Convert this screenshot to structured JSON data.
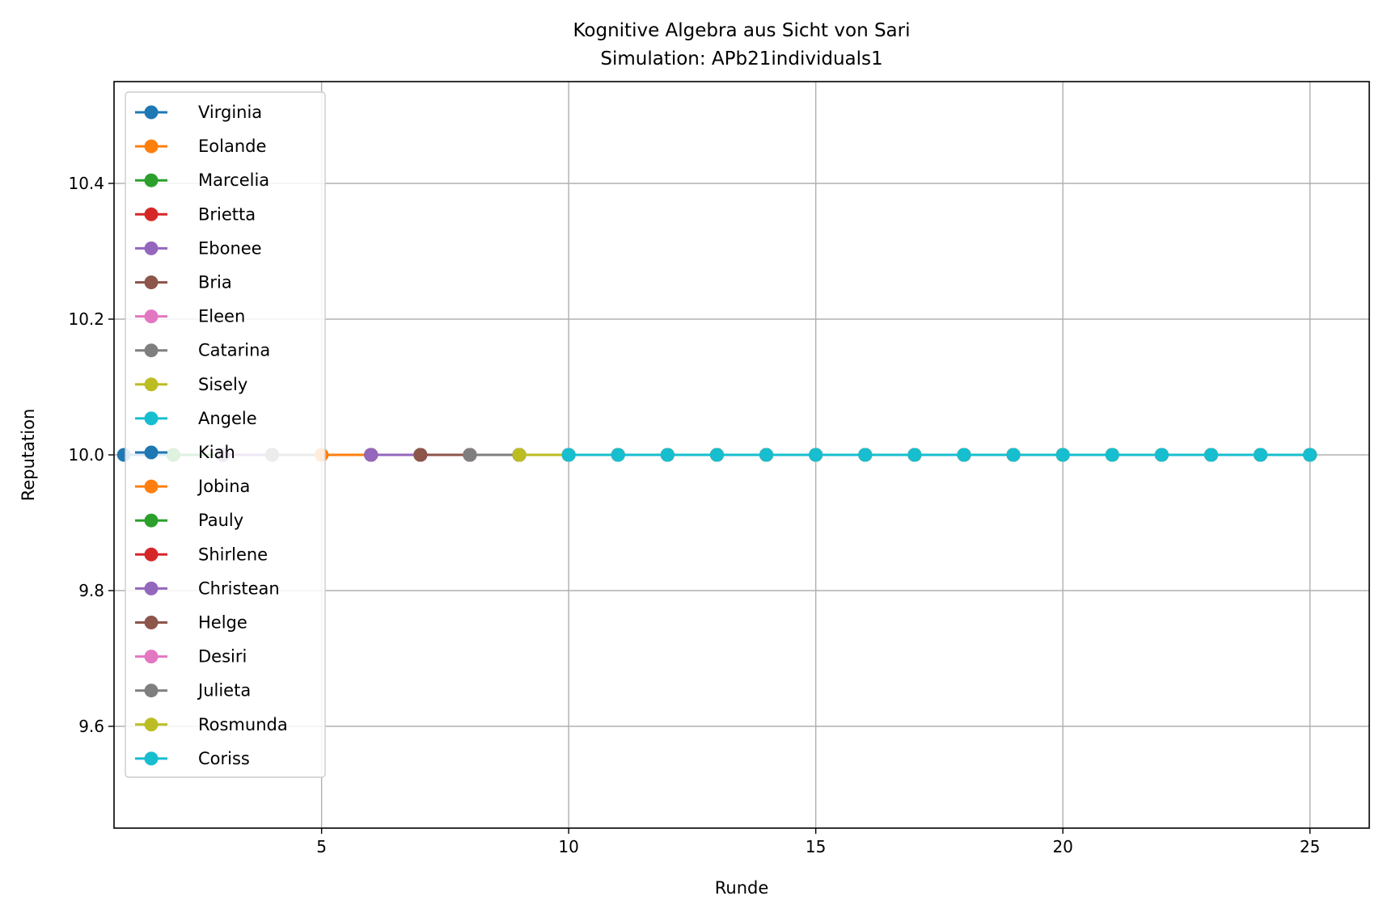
{
  "chart_data": {
    "type": "line",
    "title": "Kognitive Algebra aus Sicht von Sari",
    "subtitle": "Simulation: APb21individuals1",
    "xlabel": "Runde",
    "ylabel": "Reputation",
    "xlim": [
      0.8,
      26.2
    ],
    "ylim": [
      9.45,
      10.55
    ],
    "xticks": [
      5,
      10,
      15,
      20,
      25
    ],
    "xtick_labels": [
      "5",
      "10",
      "15",
      "20",
      "25"
    ],
    "yticks": [
      9.6,
      9.8,
      10.0,
      10.2,
      10.4
    ],
    "ytick_labels": [
      "9.6",
      "9.8",
      "10.0",
      "10.2",
      "10.4"
    ],
    "grid": true,
    "legend_position": "upper-left",
    "series": [
      {
        "name": "Virginia",
        "color": "#1f77b4",
        "x": [
          1,
          2,
          3,
          4,
          5,
          6,
          7,
          8,
          9,
          10,
          11,
          12,
          13,
          14,
          15,
          16,
          17,
          18,
          19,
          20,
          21,
          22,
          23,
          24,
          25
        ],
        "y": [
          10,
          10,
          10,
          10,
          10,
          10,
          10,
          10,
          10,
          10,
          10,
          10,
          10,
          10,
          10,
          10,
          10,
          10,
          10,
          10,
          10,
          10,
          10,
          10,
          10
        ]
      },
      {
        "name": "Eolande",
        "color": "#ff7f0e",
        "x": [
          2,
          3,
          4,
          5,
          6,
          7,
          8,
          9,
          10,
          11,
          12,
          13,
          14,
          15,
          16,
          17,
          18,
          19,
          20,
          21,
          22,
          23,
          24,
          25
        ],
        "y": [
          10,
          10,
          10,
          10,
          10,
          10,
          10,
          10,
          10,
          10,
          10,
          10,
          10,
          10,
          10,
          10,
          10,
          10,
          10,
          10,
          10,
          10,
          10,
          10
        ]
      },
      {
        "name": "Marcelia",
        "color": "#2ca02c",
        "x": [
          2,
          3,
          4,
          5,
          6,
          7,
          8,
          9,
          10,
          11,
          12,
          13,
          14,
          15,
          16,
          17,
          18,
          19,
          20,
          21,
          22,
          23,
          24,
          25
        ],
        "y": [
          10,
          10,
          10,
          10,
          10,
          10,
          10,
          10,
          10,
          10,
          10,
          10,
          10,
          10,
          10,
          10,
          10,
          10,
          10,
          10,
          10,
          10,
          10,
          10
        ]
      },
      {
        "name": "Brietta",
        "color": "#d62728",
        "x": [
          3,
          4,
          5,
          6,
          7,
          8,
          9,
          10,
          11,
          12,
          13,
          14,
          15,
          16,
          17,
          18,
          19,
          20,
          21,
          22,
          23,
          24,
          25
        ],
        "y": [
          10,
          10,
          10,
          10,
          10,
          10,
          10,
          10,
          10,
          10,
          10,
          10,
          10,
          10,
          10,
          10,
          10,
          10,
          10,
          10,
          10,
          10,
          10
        ]
      },
      {
        "name": "Ebonee",
        "color": "#9467bd",
        "x": [
          3,
          4,
          5,
          6,
          7,
          8,
          9,
          10,
          11,
          12,
          13,
          14,
          15,
          16,
          17,
          18,
          19,
          20,
          21,
          22,
          23,
          24,
          25
        ],
        "y": [
          10,
          10,
          10,
          10,
          10,
          10,
          10,
          10,
          10,
          10,
          10,
          10,
          10,
          10,
          10,
          10,
          10,
          10,
          10,
          10,
          10,
          10,
          10
        ]
      },
      {
        "name": "Bria",
        "color": "#8c564b",
        "x": [
          4,
          5,
          6,
          7,
          8,
          9,
          10,
          11,
          12,
          13,
          14,
          15,
          16,
          17,
          18,
          19,
          20,
          21,
          22,
          23,
          24,
          25
        ],
        "y": [
          10,
          10,
          10,
          10,
          10,
          10,
          10,
          10,
          10,
          10,
          10,
          10,
          10,
          10,
          10,
          10,
          10,
          10,
          10,
          10,
          10,
          10
        ]
      },
      {
        "name": "Eleen",
        "color": "#e377c2",
        "x": [
          4,
          5,
          6,
          7,
          8,
          9,
          10,
          11,
          12,
          13,
          14,
          15,
          16,
          17,
          18,
          19,
          20,
          21,
          22,
          23,
          24,
          25
        ],
        "y": [
          10,
          10,
          10,
          10,
          10,
          10,
          10,
          10,
          10,
          10,
          10,
          10,
          10,
          10,
          10,
          10,
          10,
          10,
          10,
          10,
          10,
          10
        ]
      },
      {
        "name": "Catarina",
        "color": "#7f7f7f",
        "x": [
          4,
          5,
          6,
          7,
          8,
          9,
          10,
          11,
          12,
          13,
          14,
          15,
          16,
          17,
          18,
          19,
          20,
          21,
          22,
          23,
          24,
          25
        ],
        "y": [
          10,
          10,
          10,
          10,
          10,
          10,
          10,
          10,
          10,
          10,
          10,
          10,
          10,
          10,
          10,
          10,
          10,
          10,
          10,
          10,
          10,
          10
        ]
      },
      {
        "name": "Sisely",
        "color": "#bcbd22",
        "x": [
          5,
          6,
          7,
          8,
          9,
          10,
          11,
          12,
          13,
          14,
          15,
          16,
          17,
          18,
          19,
          20,
          21,
          22,
          23,
          24,
          25
        ],
        "y": [
          10,
          10,
          10,
          10,
          10,
          10,
          10,
          10,
          10,
          10,
          10,
          10,
          10,
          10,
          10,
          10,
          10,
          10,
          10,
          10,
          10
        ]
      },
      {
        "name": "Angele",
        "color": "#17becf",
        "x": [
          5,
          6,
          7,
          8,
          9,
          10,
          11,
          12,
          13,
          14,
          15,
          16,
          17,
          18,
          19,
          20,
          21,
          22,
          23,
          24,
          25
        ],
        "y": [
          10,
          10,
          10,
          10,
          10,
          10,
          10,
          10,
          10,
          10,
          10,
          10,
          10,
          10,
          10,
          10,
          10,
          10,
          10,
          10,
          10
        ]
      },
      {
        "name": "Kiah",
        "color": "#1f77b4",
        "x": [
          5,
          6,
          7,
          8,
          9,
          10,
          11,
          12,
          13,
          14,
          15,
          16,
          17,
          18,
          19,
          20,
          21,
          22,
          23,
          24,
          25
        ],
        "y": [
          10,
          10,
          10,
          10,
          10,
          10,
          10,
          10,
          10,
          10,
          10,
          10,
          10,
          10,
          10,
          10,
          10,
          10,
          10,
          10,
          10
        ]
      },
      {
        "name": "Jobina",
        "color": "#ff7f0e",
        "x": [
          5,
          6,
          7,
          8,
          9,
          10,
          11,
          12,
          13,
          14,
          15,
          16,
          17,
          18,
          19,
          20,
          21,
          22,
          23,
          24,
          25
        ],
        "y": [
          10,
          10,
          10,
          10,
          10,
          10,
          10,
          10,
          10,
          10,
          10,
          10,
          10,
          10,
          10,
          10,
          10,
          10,
          10,
          10,
          10
        ]
      },
      {
        "name": "Pauly",
        "color": "#2ca02c",
        "x": [
          6,
          7,
          8,
          9,
          10,
          11,
          12,
          13,
          14,
          15,
          16,
          17,
          18,
          19,
          20,
          21,
          22,
          23,
          24,
          25
        ],
        "y": [
          10,
          10,
          10,
          10,
          10,
          10,
          10,
          10,
          10,
          10,
          10,
          10,
          10,
          10,
          10,
          10,
          10,
          10,
          10,
          10
        ]
      },
      {
        "name": "Shirlene",
        "color": "#d62728",
        "x": [
          6,
          7,
          8,
          9,
          10,
          11,
          12,
          13,
          14,
          15,
          16,
          17,
          18,
          19,
          20,
          21,
          22,
          23,
          24,
          25
        ],
        "y": [
          10,
          10,
          10,
          10,
          10,
          10,
          10,
          10,
          10,
          10,
          10,
          10,
          10,
          10,
          10,
          10,
          10,
          10,
          10,
          10
        ]
      },
      {
        "name": "Christean",
        "color": "#9467bd",
        "x": [
          6,
          7,
          8,
          9,
          10,
          11,
          12,
          13,
          14,
          15,
          16,
          17,
          18,
          19,
          20,
          21,
          22,
          23,
          24,
          25
        ],
        "y": [
          10,
          10,
          10,
          10,
          10,
          10,
          10,
          10,
          10,
          10,
          10,
          10,
          10,
          10,
          10,
          10,
          10,
          10,
          10,
          10
        ]
      },
      {
        "name": "Helge",
        "color": "#8c564b",
        "x": [
          7,
          8,
          9,
          10,
          11,
          12,
          13,
          14,
          15,
          16,
          17,
          18,
          19,
          20,
          21,
          22,
          23,
          24,
          25
        ],
        "y": [
          10,
          10,
          10,
          10,
          10,
          10,
          10,
          10,
          10,
          10,
          10,
          10,
          10,
          10,
          10,
          10,
          10,
          10,
          10
        ]
      },
      {
        "name": "Desiri",
        "color": "#e377c2",
        "x": [
          8,
          9,
          10,
          11,
          12,
          13,
          14,
          15,
          16,
          17,
          18,
          19,
          20,
          21,
          22,
          23,
          24,
          25
        ],
        "y": [
          10,
          10,
          10,
          10,
          10,
          10,
          10,
          10,
          10,
          10,
          10,
          10,
          10,
          10,
          10,
          10,
          10,
          10
        ]
      },
      {
        "name": "Julieta",
        "color": "#7f7f7f",
        "x": [
          8,
          9,
          10,
          11,
          12,
          13,
          14,
          15,
          16,
          17,
          18,
          19,
          20,
          21,
          22,
          23,
          24,
          25
        ],
        "y": [
          10,
          10,
          10,
          10,
          10,
          10,
          10,
          10,
          10,
          10,
          10,
          10,
          10,
          10,
          10,
          10,
          10,
          10
        ]
      },
      {
        "name": "Rosmunda",
        "color": "#bcbd22",
        "x": [
          9,
          10,
          11,
          12,
          13,
          14,
          15,
          16,
          17,
          18,
          19,
          20,
          21,
          22,
          23,
          24,
          25
        ],
        "y": [
          10,
          10,
          10,
          10,
          10,
          10,
          10,
          10,
          10,
          10,
          10,
          10,
          10,
          10,
          10,
          10,
          10
        ]
      },
      {
        "name": "Coriss",
        "color": "#17becf",
        "x": [
          10,
          11,
          12,
          13,
          14,
          15,
          16,
          17,
          18,
          19,
          20,
          21,
          22,
          23,
          24,
          25
        ],
        "y": [
          10,
          10,
          10,
          10,
          10,
          10,
          10,
          10,
          10,
          10,
          10,
          10,
          10,
          10,
          10,
          10
        ]
      }
    ]
  }
}
